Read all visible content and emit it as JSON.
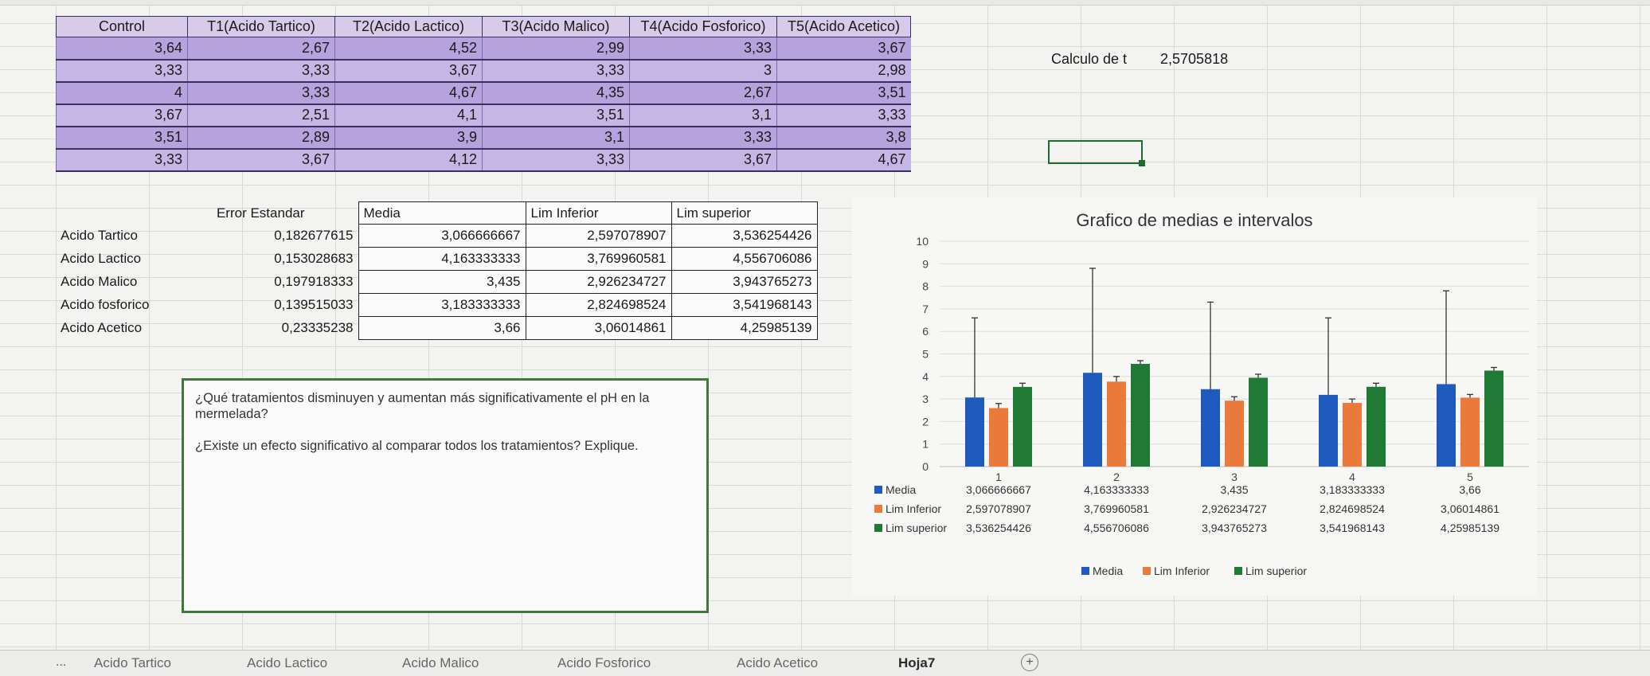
{
  "top_table": {
    "headers": [
      "Control",
      "T1(Acido Tartico)",
      "T2(Acido Lactico)",
      "T3(Acido Malico)",
      "T4(Acido Fosforico)",
      "T5(Acido Acetico)"
    ],
    "rows": [
      [
        "3,64",
        "2,67",
        "4,52",
        "2,99",
        "3,33",
        "3,67"
      ],
      [
        "3,33",
        "3,33",
        "3,67",
        "3,33",
        "3",
        "2,98"
      ],
      [
        "4",
        "3,33",
        "4,67",
        "4,35",
        "2,67",
        "3,51"
      ],
      [
        "3,67",
        "2,51",
        "4,1",
        "3,51",
        "3,1",
        "3,33"
      ],
      [
        "3,51",
        "2,89",
        "3,9",
        "3,1",
        "3,33",
        "3,8"
      ],
      [
        "3,33",
        "3,67",
        "4,12",
        "3,33",
        "3,67",
        "4,67"
      ]
    ]
  },
  "calc_t": {
    "label": "Calculo de t",
    "value": "2,5705818"
  },
  "summary_table": {
    "headers": [
      "Error Estandar",
      "Media",
      "Lim Inferior",
      "Lim superior"
    ],
    "rows": [
      [
        "Acido Tartico",
        "0,182677615",
        "3,066666667",
        "2,597078907",
        "3,536254426"
      ],
      [
        "Acido Lactico",
        "0,153028683",
        "4,163333333",
        "3,769960581",
        "4,556706086"
      ],
      [
        "Acido Malico",
        "0,197918333",
        "3,435",
        "2,926234727",
        "3,943765273"
      ],
      [
        "Acido fosforico",
        "0,139515033",
        "3,183333333",
        "2,824698524",
        "3,541968143"
      ],
      [
        "Acido Acetico",
        "0,23335238",
        "3,66",
        "3,06014861",
        "4,25985139"
      ]
    ]
  },
  "question_box": {
    "q1": "¿Qué tratamientos disminuyen y aumentan más significativamente el pH en la mermelada?",
    "q2": "¿Existe un efecto significativo al comparar todos los tratamientos? Explique."
  },
  "chart_data": {
    "type": "bar",
    "title": "Grafico de medias e intervalos",
    "categories": [
      "1",
      "2",
      "3",
      "4",
      "5"
    ],
    "ylim": [
      0,
      10
    ],
    "yticks": [
      "0",
      "1",
      "2",
      "3",
      "4",
      "5",
      "6",
      "7",
      "8",
      "9",
      "10"
    ],
    "series": [
      {
        "name": "Media",
        "color": "#1f5bbf",
        "values": [
          3.066666667,
          4.163333333,
          3.435,
          3.183333333,
          3.66
        ],
        "labels": [
          "3,066666667",
          "4,163333333",
          "3,435",
          "3,183333333",
          "3,66"
        ],
        "error_top": [
          6.6,
          8.8,
          7.3,
          6.6,
          7.8
        ]
      },
      {
        "name": "Lim Inferior",
        "color": "#ea7a3c",
        "values": [
          2.597078907,
          3.769960581,
          2.926234727,
          2.824698524,
          3.06014861
        ],
        "labels": [
          "2,597078907",
          "3,769960581",
          "2,926234727",
          "2,824698524",
          "3,06014861"
        ],
        "error_top": [
          2.8,
          4.0,
          3.1,
          3.0,
          3.2
        ]
      },
      {
        "name": "Lim superior",
        "color": "#1e7a34",
        "values": [
          3.536254426,
          4.556706086,
          3.943765273,
          3.541968143,
          4.25985139
        ],
        "labels": [
          "3,536254426",
          "4,556706086",
          "3,943765273",
          "3,541968143",
          "4,25985139"
        ],
        "error_top": [
          3.7,
          4.7,
          4.1,
          3.7,
          4.4
        ]
      }
    ],
    "legend_position": "bottom"
  },
  "sheet_tabs": {
    "dots": "...",
    "tabs": [
      "Acido Tartico",
      "Acido Lactico",
      "Acido Malico",
      "Acido Fosforico",
      "Acido Acetico",
      "Hoja7"
    ],
    "active": "Hoja7",
    "add": "+"
  }
}
